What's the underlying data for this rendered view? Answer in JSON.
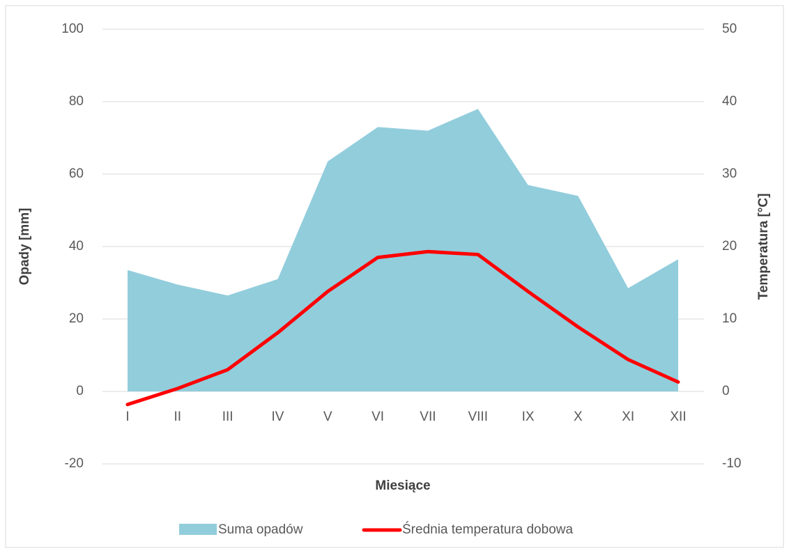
{
  "chart_data": {
    "type": "area-line",
    "categories": [
      "I",
      "II",
      "III",
      "IV",
      "V",
      "VI",
      "VII",
      "VIII",
      "IX",
      "X",
      "XI",
      "XII"
    ],
    "series": [
      {
        "name": "Suma opadów",
        "type": "area",
        "color": "#92cddc",
        "values": [
          33.5,
          29.5,
          26.5,
          31,
          63.5,
          73,
          72,
          78,
          57,
          54,
          28.5,
          36.5
        ]
      },
      {
        "name": "Średnia temperatura dobowa",
        "type": "line",
        "axis": "y2",
        "color": "#ff0000",
        "values": [
          -1.8,
          0.4,
          3.0,
          8.1,
          13.8,
          18.5,
          19.3,
          18.9,
          13.8,
          8.9,
          4.4,
          1.3
        ]
      }
    ],
    "xlabel": "Miesiące",
    "ylabel": "Opady [mm]",
    "y2label": "Temperatura [°C]",
    "ylim": [
      -20,
      100
    ],
    "yticks": [
      -20,
      0,
      20,
      40,
      60,
      80,
      100
    ],
    "y2lim": [
      -10,
      50
    ],
    "y2ticks": [
      -10,
      0,
      10,
      20,
      30,
      40,
      50
    ],
    "grid": true,
    "legend": "bottom"
  }
}
